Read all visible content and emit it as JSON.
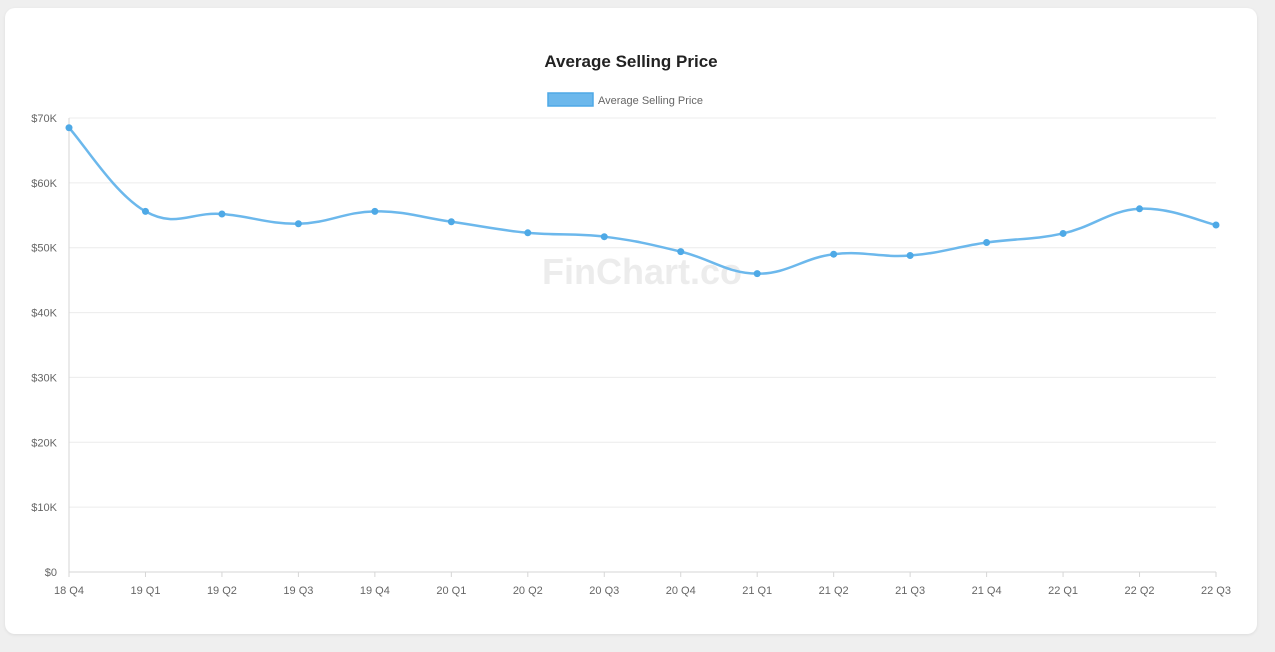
{
  "watermark": "FinChart.co",
  "chart_data": {
    "type": "line",
    "title": "Average Selling Price",
    "xlabel": "",
    "ylabel": "",
    "categories": [
      "18 Q4",
      "19 Q1",
      "19 Q2",
      "19 Q3",
      "19 Q4",
      "20 Q1",
      "20 Q2",
      "20 Q3",
      "20 Q4",
      "21 Q1",
      "21 Q2",
      "21 Q3",
      "21 Q4",
      "22 Q1",
      "22 Q2",
      "22 Q3"
    ],
    "series": [
      {
        "name": "Average Selling Price",
        "color": "#6cb8ec",
        "values": [
          68500,
          55600,
          55200,
          53700,
          55600,
          54000,
          52300,
          51700,
          49400,
          46000,
          49000,
          48800,
          50800,
          52200,
          56000,
          53500
        ]
      }
    ],
    "y_ticks": [
      "$0",
      "$10K",
      "$20K",
      "$30K",
      "$40K",
      "$50K",
      "$60K",
      "$70K"
    ],
    "ylim": [
      0,
      70000
    ],
    "grid": true,
    "legend_position": "top-center"
  }
}
